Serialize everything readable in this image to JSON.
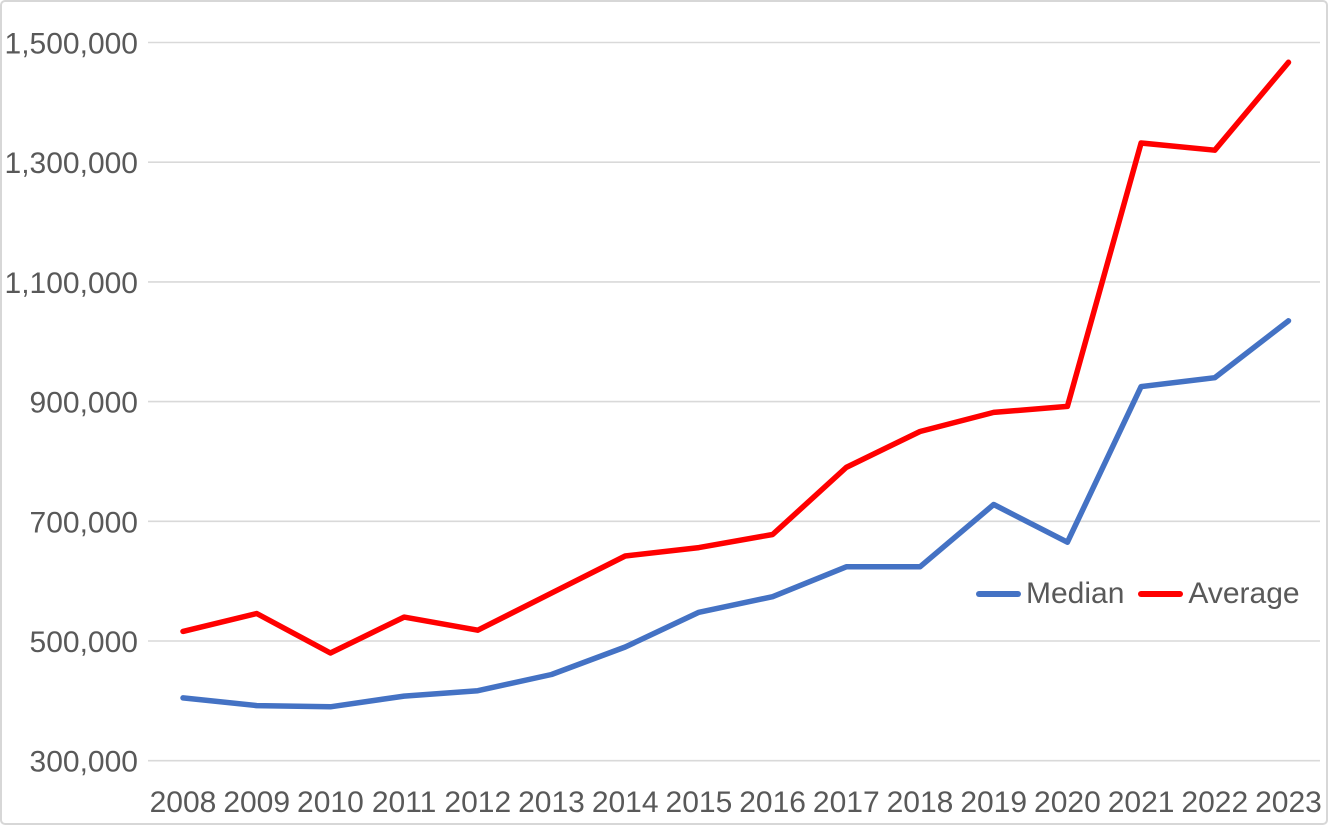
{
  "chart_data": {
    "type": "line",
    "title": "",
    "xlabel": "",
    "ylabel": "",
    "x": [
      "2008",
      "2009",
      "2010",
      "2011",
      "2012",
      "2013",
      "2014",
      "2015",
      "2016",
      "2017",
      "2018",
      "2019",
      "2020",
      "2021",
      "2022",
      "2023"
    ],
    "series": [
      {
        "name": "Median",
        "color": "#4472C4",
        "values": [
          405000,
          392000,
          390000,
          408000,
          417000,
          444000,
          490000,
          548000,
          574000,
          624000,
          624000,
          728000,
          665000,
          925000,
          940000,
          1035000
        ]
      },
      {
        "name": "Average",
        "color": "#FF0000",
        "values": [
          516000,
          546000,
          480000,
          540000,
          518000,
          580000,
          642000,
          656000,
          678000,
          790000,
          850000,
          882000,
          892000,
          1332000,
          1320000,
          1467000
        ]
      }
    ],
    "ylim": [
      300000,
      1500000
    ],
    "ytick_step": 200000,
    "ytick_values": [
      300000,
      500000,
      700000,
      900000,
      1100000,
      1300000,
      1500000
    ],
    "ytick_labels": [
      "300,000",
      "500,000",
      "700,000",
      "900,000",
      "1,100,000",
      "1,300,000",
      "1,500,000"
    ],
    "grid": true,
    "gridline_color": "#D9D9D9",
    "text_color": "#595959",
    "legend_position": "inside-right",
    "legend_items": [
      "Median",
      "Average"
    ]
  }
}
